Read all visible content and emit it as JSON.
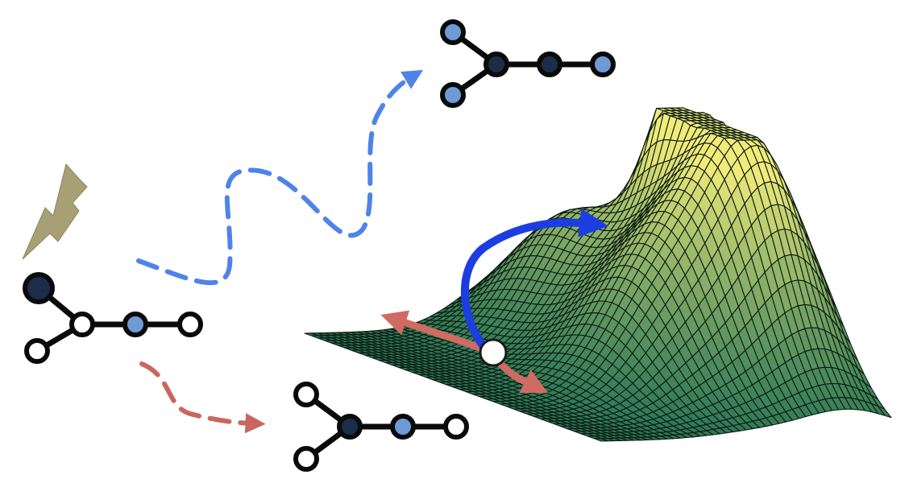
{
  "figure": {
    "description_free": true,
    "colors": {
      "background": "#ffffff",
      "bond": "#0a0a0a",
      "atom_dark": "#1b2d48",
      "atom_light_blue": "#6f9ad6",
      "atom_white": "#ffffff",
      "excitation_bolt": "#a8a075",
      "path_blue_dashed": "#4f83ea",
      "path_red_dashed": "#c9675f",
      "path_blue_solid": "#1c3ee0",
      "path_red_solid": "#cf6b62",
      "surface_low": "#2f7a57",
      "surface_high": "#f1ec7a",
      "surface_mesh": "#0b1a12"
    },
    "icons": {
      "excitation": "lightning-bolt-icon",
      "start_molecule": "molecule-icon",
      "product_blue": "molecule-icon",
      "product_red": "molecule-icon",
      "surface": "energy-surface-mesh"
    },
    "molecules": {
      "start": {
        "atoms": [
          "dark",
          "white",
          "light_blue",
          "white",
          "white"
        ]
      },
      "product_blue": {
        "atoms": [
          "light_blue",
          "dark",
          "dark",
          "light_blue",
          "light_blue"
        ]
      },
      "product_red": {
        "atoms": [
          "white",
          "dark",
          "light_blue",
          "white",
          "white"
        ]
      }
    },
    "pathways": {
      "blue_dashed": "wavy-dashed-arrow",
      "red_dashed": "dashed-arrow",
      "blue_solid": "curved-arrow-on-surface",
      "red_solid": "double-headed-oscillation-arrow"
    }
  }
}
